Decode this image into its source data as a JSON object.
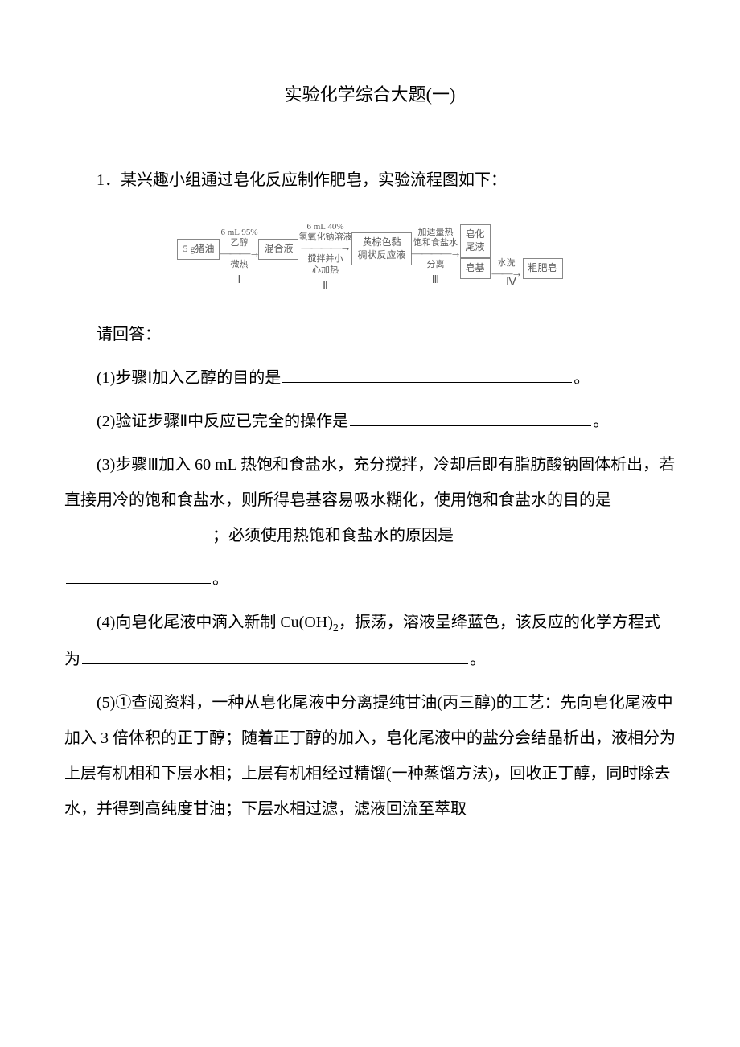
{
  "title": "实验化学综合大题(一)",
  "intro": "1．某兴趣小组通过皂化反应制作肥皂，实验流程图如下：",
  "flowchart": {
    "text_color": "#5a5a5a",
    "border_color": "#888888",
    "box1": "5 g猪油",
    "arrow1_top": "6 mL 95%",
    "arrow1_mid": "乙醇",
    "arrow1_bottom": "微热",
    "box2": "混合液",
    "arrow2_top": "6 mL 40%",
    "arrow2_mid": "氢氧化钠溶液",
    "arrow2_bottom": "搅拌并小\n心加热",
    "box3": "黄棕色黏\n稠状反应液",
    "arrow3_top": "加适量热",
    "arrow3_mid": "饱和食盐水",
    "arrow3_bottom": "分离",
    "box4a": "皂化\n尾液",
    "box4b": "皂基",
    "arrow4": "水洗",
    "box5": "粗肥皂",
    "step1": "Ⅰ",
    "step2": "Ⅱ",
    "step3": "Ⅲ",
    "step4": "Ⅳ"
  },
  "prompt": "请回答：",
  "q1_pre": "(1)步骤Ⅰ加入乙醇的目的是",
  "q1_post": "。",
  "q2_pre": "(2)验证步骤Ⅱ中反应已完全的操作是",
  "q2_post": "。",
  "q3_line1": "(3)步骤Ⅲ加入 60 mL 热饱和食盐水，充分搅拌，冷却后即有脂肪酸钠固体析出，若直接用冷的饱和食盐水，则所得皂基容易吸水糊化，使用饱和食盐水的目的是",
  "q3_mid": "；必须使用热饱和食盐水的原因是",
  "q3_post": "。",
  "q4_pre": "(4)向皂化尾液中滴入新制 Cu(OH)",
  "q4_sub": "2",
  "q4_mid": "，振荡，溶液呈绛蓝色，该反应的化学方程式为",
  "q4_post": "。",
  "q5": "(5)①查阅资料，一种从皂化尾液中分离提纯甘油(丙三醇)的工艺：先向皂化尾液中加入 3 倍体积的正丁醇；随着正丁醇的加入，皂化尾液中的盐分会结晶析出，液相分为上层有机相和下层水相；上层有机相经过精馏(一种蒸馏方法)，回收正丁醇，同时除去水，并得到高纯度甘油；下层水相过滤，滤液回流至萃取"
}
